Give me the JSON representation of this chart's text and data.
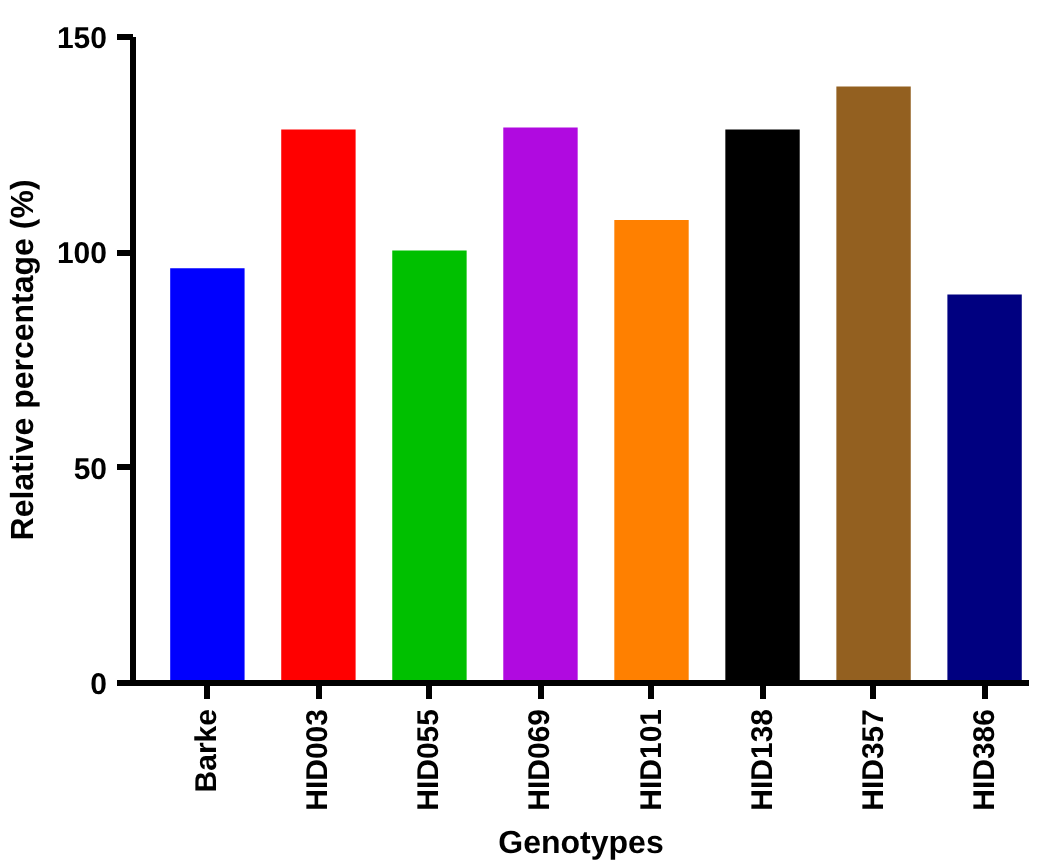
{
  "chart_data": {
    "type": "bar",
    "xlabel": "Genotypes",
    "ylabel": "Relative percentage (%)",
    "categories": [
      "Barke",
      "HID003",
      "HID055",
      "HID069",
      "HID101",
      "HID138",
      "HID357",
      "HID386"
    ],
    "values": [
      96.3,
      128.5,
      100.4,
      129,
      107.5,
      128.5,
      138.5,
      90.2
    ],
    "colors": [
      "#0000ff",
      "#ff0000",
      "#00c000",
      "#b00ae0",
      "#ff8000",
      "#000000",
      "#936020",
      "#000080"
    ],
    "ylim": [
      0,
      150
    ],
    "yticks": [
      0,
      50,
      100,
      150
    ],
    "grid": false
  }
}
